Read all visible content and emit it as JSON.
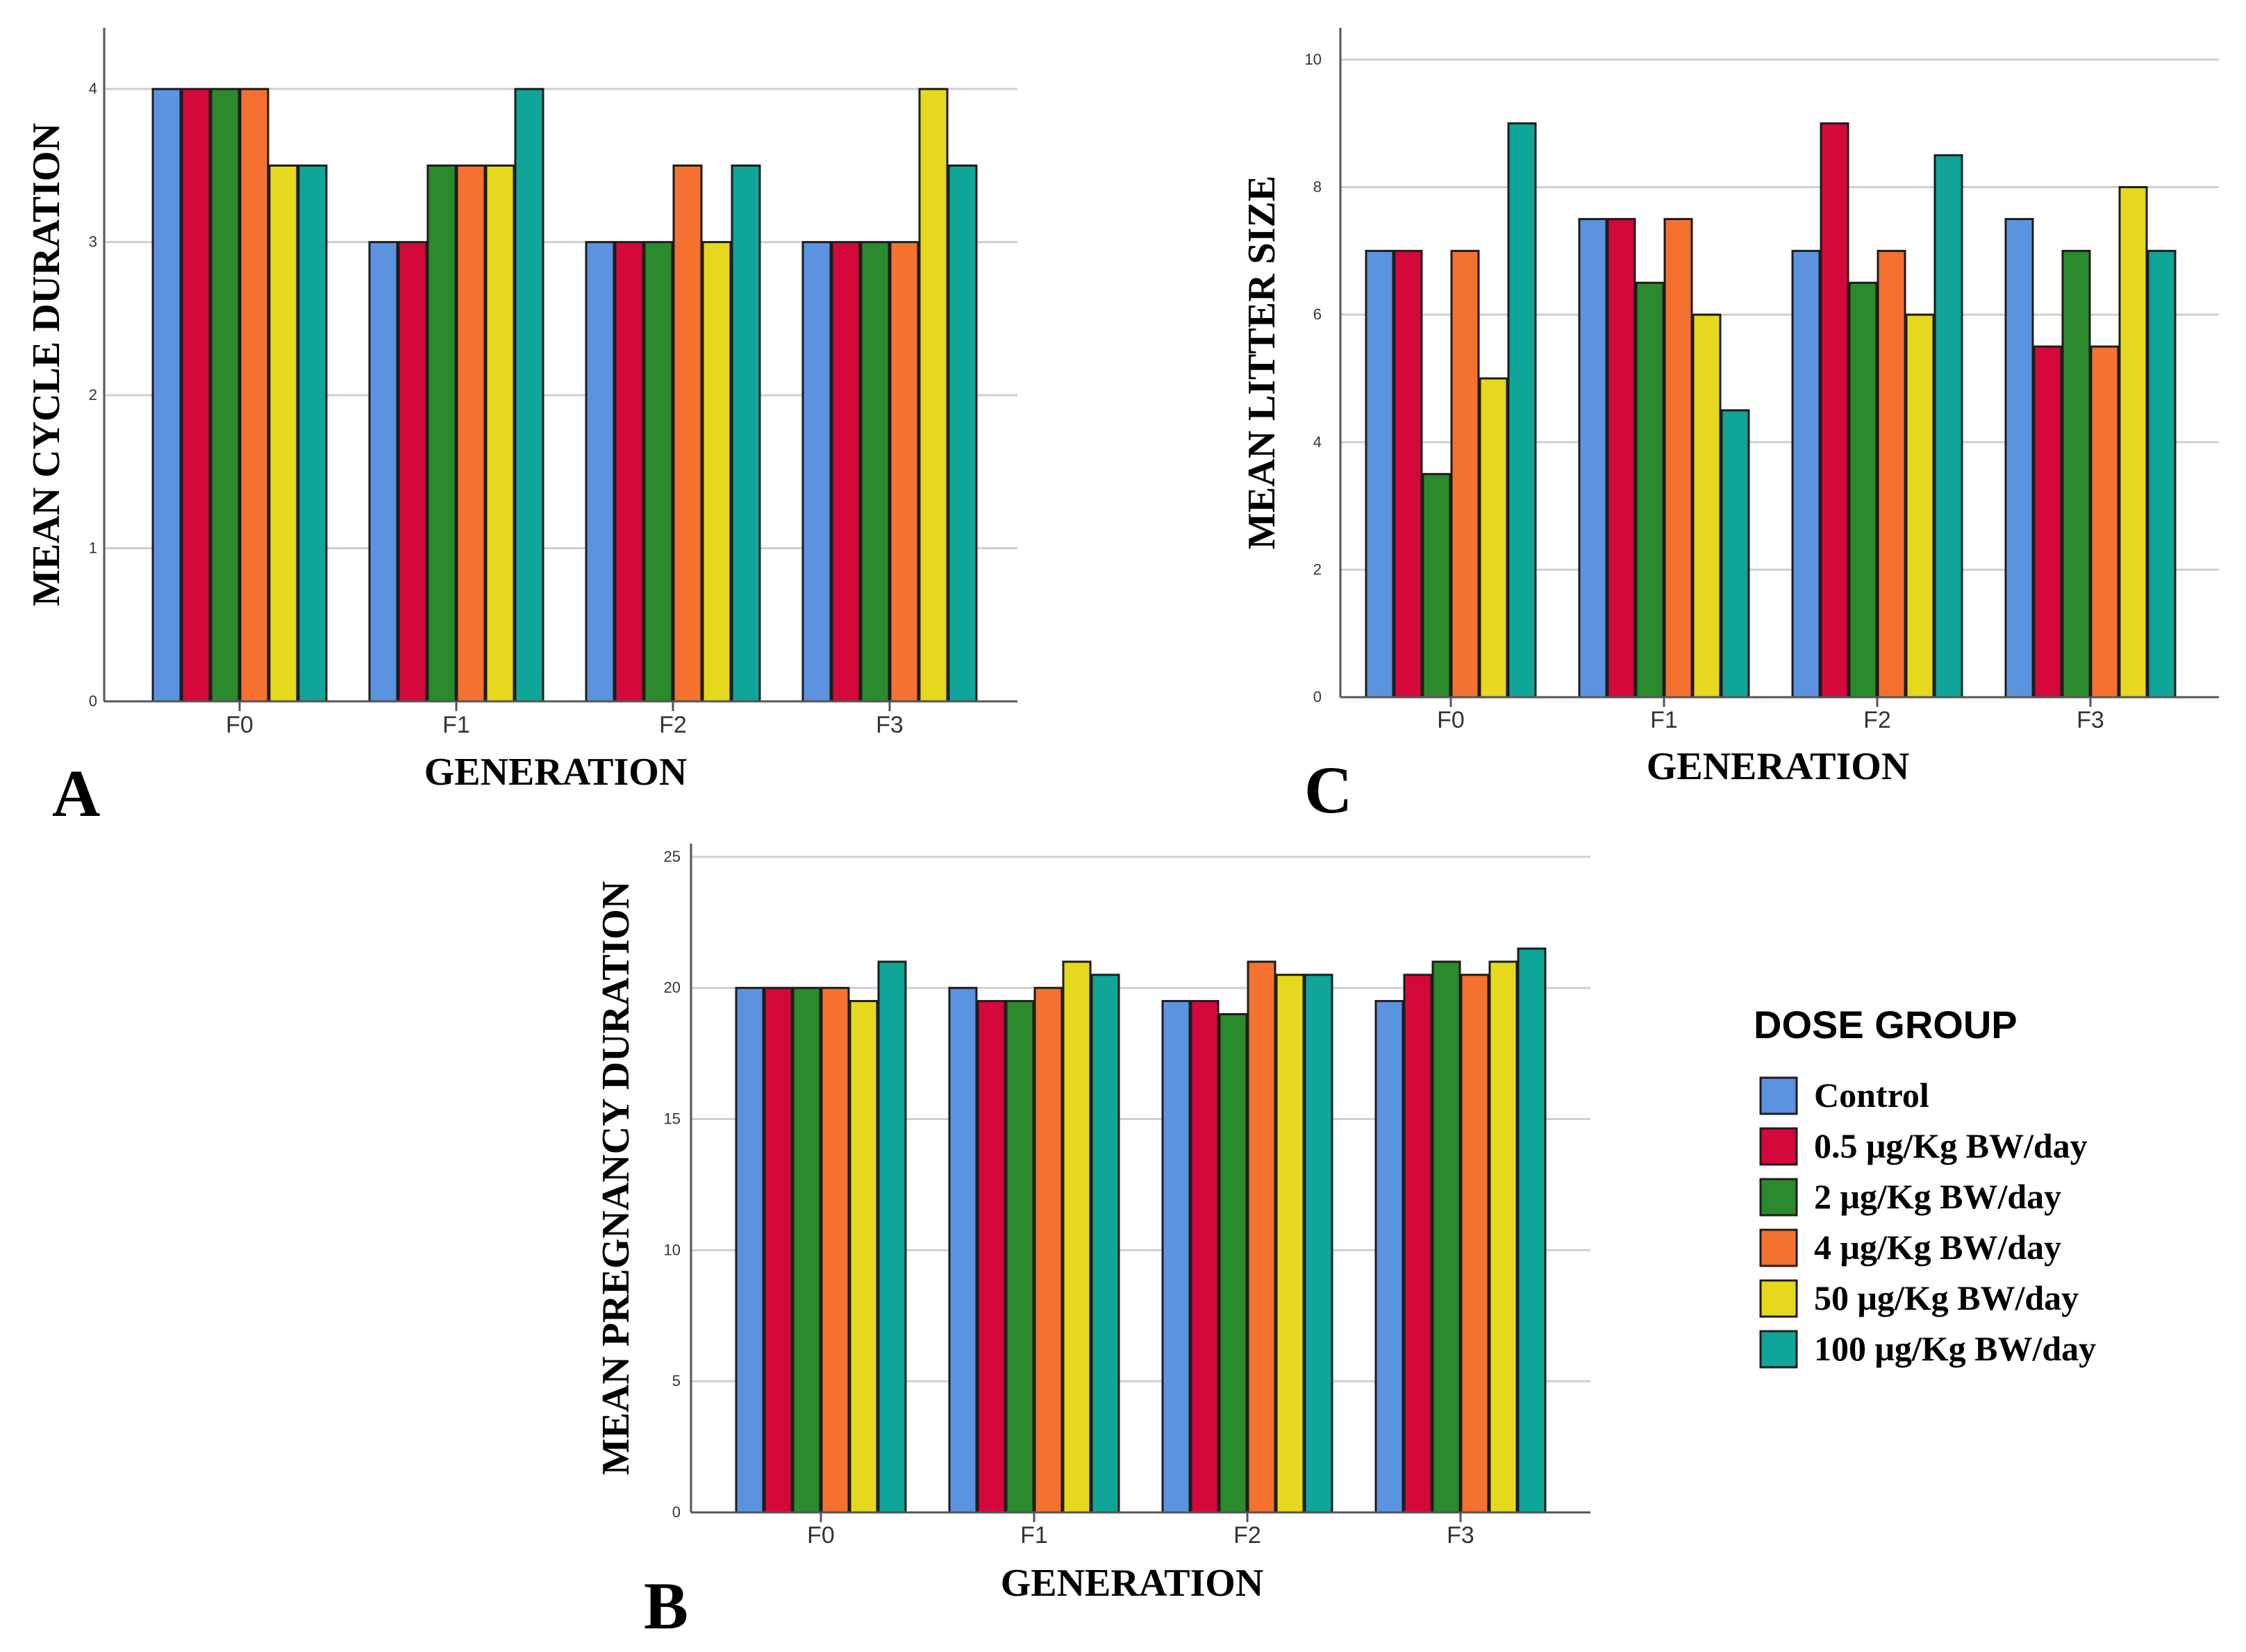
{
  "chart_data": [
    {
      "type": "bar",
      "panel_label": "A",
      "title": "",
      "xlabel": "GENERATION",
      "ylabel": "MEAN CYCLE DURATION",
      "categories": [
        "F0",
        "F1",
        "F2",
        "F3"
      ],
      "ylim": [
        0,
        4.4
      ],
      "yticks": [
        0,
        1,
        2,
        3,
        4
      ],
      "grid": true,
      "series": [
        {
          "name": "Control",
          "values": [
            4,
            3,
            3,
            3
          ]
        },
        {
          "name": "0.5 μg/Kg BW/day",
          "values": [
            4,
            3,
            3,
            3
          ]
        },
        {
          "name": "2 μg/Kg BW/day",
          "values": [
            4,
            3.5,
            3,
            3
          ]
        },
        {
          "name": "4 μg/Kg BW/day",
          "values": [
            4,
            3.5,
            3.5,
            3
          ]
        },
        {
          "name": "50 μg/Kg BW/day",
          "values": [
            3.5,
            3.5,
            3,
            4
          ]
        },
        {
          "name": "100 μg/Kg BW/day",
          "values": [
            3.5,
            4,
            3.5,
            3.5
          ]
        }
      ]
    },
    {
      "type": "bar",
      "panel_label": "C",
      "title": "",
      "xlabel": "GENERATION",
      "ylabel": "MEAN LITTER SIZE",
      "categories": [
        "F0",
        "F1",
        "F2",
        "F3"
      ],
      "ylim": [
        0,
        10.5
      ],
      "yticks": [
        0,
        2,
        4,
        6,
        8,
        10
      ],
      "grid": true,
      "series": [
        {
          "name": "Control",
          "values": [
            7,
            7.5,
            7,
            7.5
          ]
        },
        {
          "name": "0.5 μg/Kg BW/day",
          "values": [
            7,
            7.5,
            9,
            5.5
          ]
        },
        {
          "name": "2 μg/Kg BW/day",
          "values": [
            3.5,
            6.5,
            6.5,
            7
          ]
        },
        {
          "name": "4 μg/Kg BW/day",
          "values": [
            7,
            7.5,
            7,
            5.5
          ]
        },
        {
          "name": "50 μg/Kg BW/day",
          "values": [
            5,
            6,
            6,
            8
          ]
        },
        {
          "name": "100 μg/Kg BW/day",
          "values": [
            9,
            4.5,
            8.5,
            7
          ]
        }
      ]
    },
    {
      "type": "bar",
      "panel_label": "B",
      "title": "",
      "xlabel": "GENERATION",
      "ylabel": "MEAN PREGNANCY DURATION",
      "categories": [
        "F0",
        "F1",
        "F2",
        "F3"
      ],
      "ylim": [
        0,
        25.5
      ],
      "yticks": [
        0,
        5,
        10,
        15,
        20,
        25
      ],
      "grid": true,
      "series": [
        {
          "name": "Control",
          "values": [
            20,
            20,
            19.5,
            19.5
          ]
        },
        {
          "name": "0.5 μg/Kg BW/day",
          "values": [
            20,
            19.5,
            19.5,
            20.5
          ]
        },
        {
          "name": "2 μg/Kg BW/day",
          "values": [
            20,
            19.5,
            19,
            21
          ]
        },
        {
          "name": "4 μg/Kg BW/day",
          "values": [
            20,
            20,
            21,
            20.5
          ]
        },
        {
          "name": "50 μg/Kg BW/day",
          "values": [
            19.5,
            21,
            20.5,
            21
          ]
        },
        {
          "name": "100 μg/Kg BW/day",
          "values": [
            21,
            20.5,
            20.5,
            21.5
          ]
        }
      ]
    }
  ],
  "legend": {
    "title": "DOSE GROUP",
    "items": [
      {
        "label": "Control",
        "color": "#5b93e0"
      },
      {
        "label": "0.5 μg/Kg BW/day",
        "color": "#d4083a"
      },
      {
        "label": "2 μg/Kg BW/day",
        "color": "#2b8a2b"
      },
      {
        "label": "4 μg/Kg BW/day",
        "color": "#f4712f"
      },
      {
        "label": "50 μg/Kg BW/day",
        "color": "#e6d81c"
      },
      {
        "label": "100 μg/Kg BW/day",
        "color": "#0fa599"
      }
    ]
  }
}
